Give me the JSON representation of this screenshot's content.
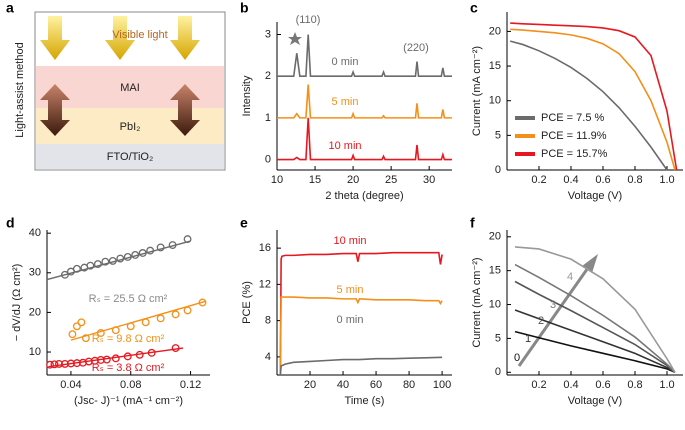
{
  "diagram": {
    "label": "a",
    "side": "Light-assist method",
    "light": "Visible light",
    "layers": [
      "MAI",
      "PbI₂",
      "FTO/TiO₂"
    ]
  },
  "chart_data": [
    {
      "type": "line",
      "label": "b",
      "xlabel": "2 theta (degree)",
      "ylabel": "Intensity",
      "xlim": [
        10,
        33
      ],
      "ylim": [
        -0.25,
        3.3
      ],
      "xticks": [
        10,
        15,
        20,
        25,
        30
      ],
      "yticks": [
        0,
        1,
        2,
        3
      ],
      "x": [
        10,
        12.2,
        12.6,
        13.0,
        13.8,
        14.1,
        14.4,
        19.8,
        20.0,
        20.2,
        23.8,
        24.0,
        24.2,
        28.2,
        28.4,
        28.6,
        31.6,
        31.8,
        32.0,
        33
      ],
      "series": [
        {
          "name": "0 min",
          "color": "#6b6b6b",
          "values": [
            2,
            2,
            2.55,
            2,
            2,
            3.0,
            2,
            2,
            2.1,
            2,
            2,
            2.1,
            2,
            2,
            2.35,
            2,
            2,
            2.2,
            2,
            2
          ]
        },
        {
          "name": "5 min",
          "color": "#f39019",
          "values": [
            1,
            1,
            1.1,
            1,
            1,
            1.8,
            1,
            1,
            1.1,
            1,
            1,
            1.05,
            1,
            1,
            1.35,
            1,
            1,
            1.2,
            1,
            1
          ]
        },
        {
          "name": "10 min",
          "color": "#e8171f",
          "values": [
            0,
            0,
            0.05,
            0,
            0,
            1.0,
            0,
            0,
            0.1,
            0,
            0,
            0.08,
            0,
            0,
            0.35,
            0,
            0,
            0.12,
            0,
            0
          ]
        }
      ],
      "annotations": [
        {
          "text": "(110)",
          "color": "#6b6b6b"
        },
        {
          "text": "(220)",
          "color": "#6b6b6b"
        }
      ]
    },
    {
      "type": "line",
      "label": "c",
      "xlabel": "Voltage (V)",
      "ylabel": "Current (mA cm⁻²)",
      "xlim": [
        0,
        1.1
      ],
      "ylim": [
        0,
        22.8
      ],
      "xticks": [
        0.2,
        0.4,
        0.6,
        0.8,
        {
          "value": 1,
          "label": "1.0"
        }
      ],
      "yticks": [
        0,
        5,
        10,
        15,
        20
      ],
      "legend": "lower left",
      "series": [
        {
          "name": "PCE = 7.5 %",
          "color": "#6b6b6b",
          "x": [
            0.02,
            0.1,
            0.2,
            0.3,
            0.4,
            0.5,
            0.6,
            0.7,
            0.8,
            0.9,
            1.0
          ],
          "values": [
            18.6,
            18.1,
            17.2,
            16.1,
            14.8,
            13.2,
            11.3,
            9.0,
            6.3,
            3.3,
            0
          ]
        },
        {
          "name": "PCE = 11.9%",
          "color": "#f39019",
          "x": [
            0.02,
            0.1,
            0.2,
            0.3,
            0.4,
            0.5,
            0.6,
            0.7,
            0.8,
            0.9,
            1.0,
            1.05
          ],
          "values": [
            20.3,
            20.2,
            20.0,
            19.8,
            19.5,
            19.0,
            18.2,
            16.8,
            14.2,
            10.0,
            4.0,
            0
          ]
        },
        {
          "name": "PCE = 15.7%",
          "color": "#e8171f",
          "x": [
            0.02,
            0.1,
            0.2,
            0.3,
            0.4,
            0.5,
            0.6,
            0.7,
            0.8,
            0.9,
            1.0,
            1.06
          ],
          "values": [
            21.2,
            21.1,
            21.0,
            20.9,
            20.8,
            20.7,
            20.5,
            20.1,
            19.2,
            16.5,
            8.5,
            0
          ]
        }
      ]
    },
    {
      "type": "scatter",
      "label": "d",
      "xlabel": "(Jsc- J)⁻¹ (mA⁻¹ cm⁻²)",
      "ylabel": "− dV/dJ (Ω cm²)",
      "xlim": [
        0.024,
        0.133
      ],
      "ylim": [
        4.2,
        40.8
      ],
      "xticks": [
        0.04,
        0.08,
        0.12
      ],
      "yticks": [
        10,
        20,
        30,
        40
      ],
      "series": [
        {
          "color": "#6b6b6b",
          "x": [
            0.036,
            0.04,
            0.044,
            0.049,
            0.053,
            0.058,
            0.063,
            0.068,
            0.073,
            0.078,
            0.083,
            0.088,
            0.093,
            0.1,
            0.108,
            0.118
          ],
          "values": [
            29.5,
            30.3,
            31,
            31.3,
            31.8,
            32.2,
            32.8,
            33,
            33.6,
            34,
            34.5,
            35,
            35.6,
            36.4,
            37,
            38.5
          ],
          "fit": {
            "x": [
              0.024,
              0.12
            ],
            "values": [
              28.3,
              38
            ]
          }
        },
        {
          "color": "#f39019",
          "x": [
            0.041,
            0.044,
            0.047,
            0.05,
            0.06,
            0.07,
            0.08,
            0.09,
            0.1,
            0.11,
            0.118,
            0.128
          ],
          "values": [
            14.5,
            16.5,
            17.5,
            13.5,
            14.8,
            15.5,
            16.5,
            17.5,
            18.5,
            19.5,
            20.5,
            22.5
          ],
          "fit": {
            "x": [
              0.04,
              0.13
            ],
            "values": [
              13,
              22.8
            ]
          }
        },
        {
          "color": "#e8171f",
          "x": [
            0.026,
            0.029,
            0.032,
            0.036,
            0.04,
            0.044,
            0.048,
            0.052,
            0.056,
            0.06,
            0.064,
            0.07,
            0.078,
            0.086,
            0.094,
            0.11
          ],
          "values": [
            6.8,
            6.9,
            7,
            7,
            7.1,
            7.2,
            7.3,
            7.6,
            7.8,
            8,
            8.1,
            8.4,
            8.9,
            9.3,
            9.8,
            11
          ],
          "fit": {
            "x": [
              0.025,
              0.115
            ],
            "values": [
              6.3,
              11
            ]
          }
        }
      ],
      "annotations": [
        {
          "text": "Rₛ = 25.5 Ω cm²",
          "color": "#8a8a8a"
        },
        {
          "text": "Rₛ = 9.8 Ω cm²",
          "color": "#f39019"
        },
        {
          "text": "Rₛ = 3.8 Ω cm²",
          "color": "#e8171f"
        }
      ]
    },
    {
      "type": "line",
      "label": "e",
      "xlabel": "Time (s)",
      "ylabel": "PCE (%)",
      "xlim": [
        0,
        106
      ],
      "ylim": [
        2,
        18
      ],
      "xticks": [
        20,
        40,
        60,
        80,
        100
      ],
      "yticks": [
        4,
        8,
        12,
        16
      ],
      "series": [
        {
          "name": "10 min",
          "color": "#e8171f",
          "x": [
            2,
            2.5,
            3,
            5,
            10,
            20,
            30,
            40,
            48,
            49,
            50,
            52,
            60,
            70,
            80,
            90,
            98,
            99,
            100
          ],
          "values": [
            2,
            14.8,
            15.1,
            15.2,
            15.2,
            15.3,
            15.3,
            15.4,
            15.4,
            14.5,
            15.4,
            15.4,
            15.4,
            15.5,
            15.5,
            15.5,
            15.5,
            14.2,
            15.3
          ]
        },
        {
          "name": "5 min",
          "color": "#f39019",
          "x": [
            2,
            2.5,
            5,
            10,
            20,
            30,
            40,
            48,
            49,
            50,
            60,
            70,
            80,
            90,
            98,
            99,
            100
          ],
          "values": [
            2,
            10.6,
            10.6,
            10.6,
            10.5,
            10.5,
            10.4,
            10.4,
            10.0,
            10.4,
            10.3,
            10.3,
            10.3,
            10.2,
            10.2,
            9.9,
            10.2
          ]
        },
        {
          "name": "0 min",
          "color": "#6b6b6b",
          "x": [
            2,
            2.5,
            5,
            10,
            20,
            30,
            40,
            50,
            60,
            70,
            80,
            90,
            100
          ],
          "values": [
            2,
            3.0,
            3.2,
            3.4,
            3.5,
            3.6,
            3.7,
            3.7,
            3.8,
            3.8,
            3.85,
            3.9,
            3.95
          ]
        }
      ]
    },
    {
      "type": "line",
      "label": "f",
      "xlabel": "Voltage (V)",
      "ylabel": "Current (mA cm⁻²)",
      "xlim": [
        0,
        1.1
      ],
      "ylim": [
        -0.4,
        21
      ],
      "xticks": [
        0.2,
        0.4,
        0.6,
        0.8,
        {
          "value": 1,
          "label": "1.0"
        }
      ],
      "yticks": [
        0,
        5,
        10,
        15,
        20
      ],
      "x": [
        0.05,
        0.2,
        0.4,
        0.6,
        0.8,
        1.0,
        1.05
      ],
      "series": [
        {
          "name": "0",
          "color": "#111111",
          "values": [
            6.0,
            5.1,
            3.9,
            2.8,
            1.7,
            0.5,
            0
          ]
        },
        {
          "name": "1",
          "color": "#333333",
          "values": [
            9.2,
            7.9,
            6.2,
            4.5,
            2.8,
            0.7,
            0
          ]
        },
        {
          "name": "2",
          "color": "#555555",
          "values": [
            13.4,
            11.5,
            9.1,
            6.6,
            4.1,
            1.0,
            0
          ]
        },
        {
          "name": "3",
          "color": "#777777",
          "values": [
            15.9,
            14.0,
            11.3,
            8.4,
            5.2,
            1.2,
            0
          ]
        },
        {
          "name": "4",
          "color": "#999999",
          "values": [
            18.5,
            18.2,
            16.7,
            13.8,
            9.3,
            2.0,
            0
          ]
        }
      ]
    }
  ]
}
